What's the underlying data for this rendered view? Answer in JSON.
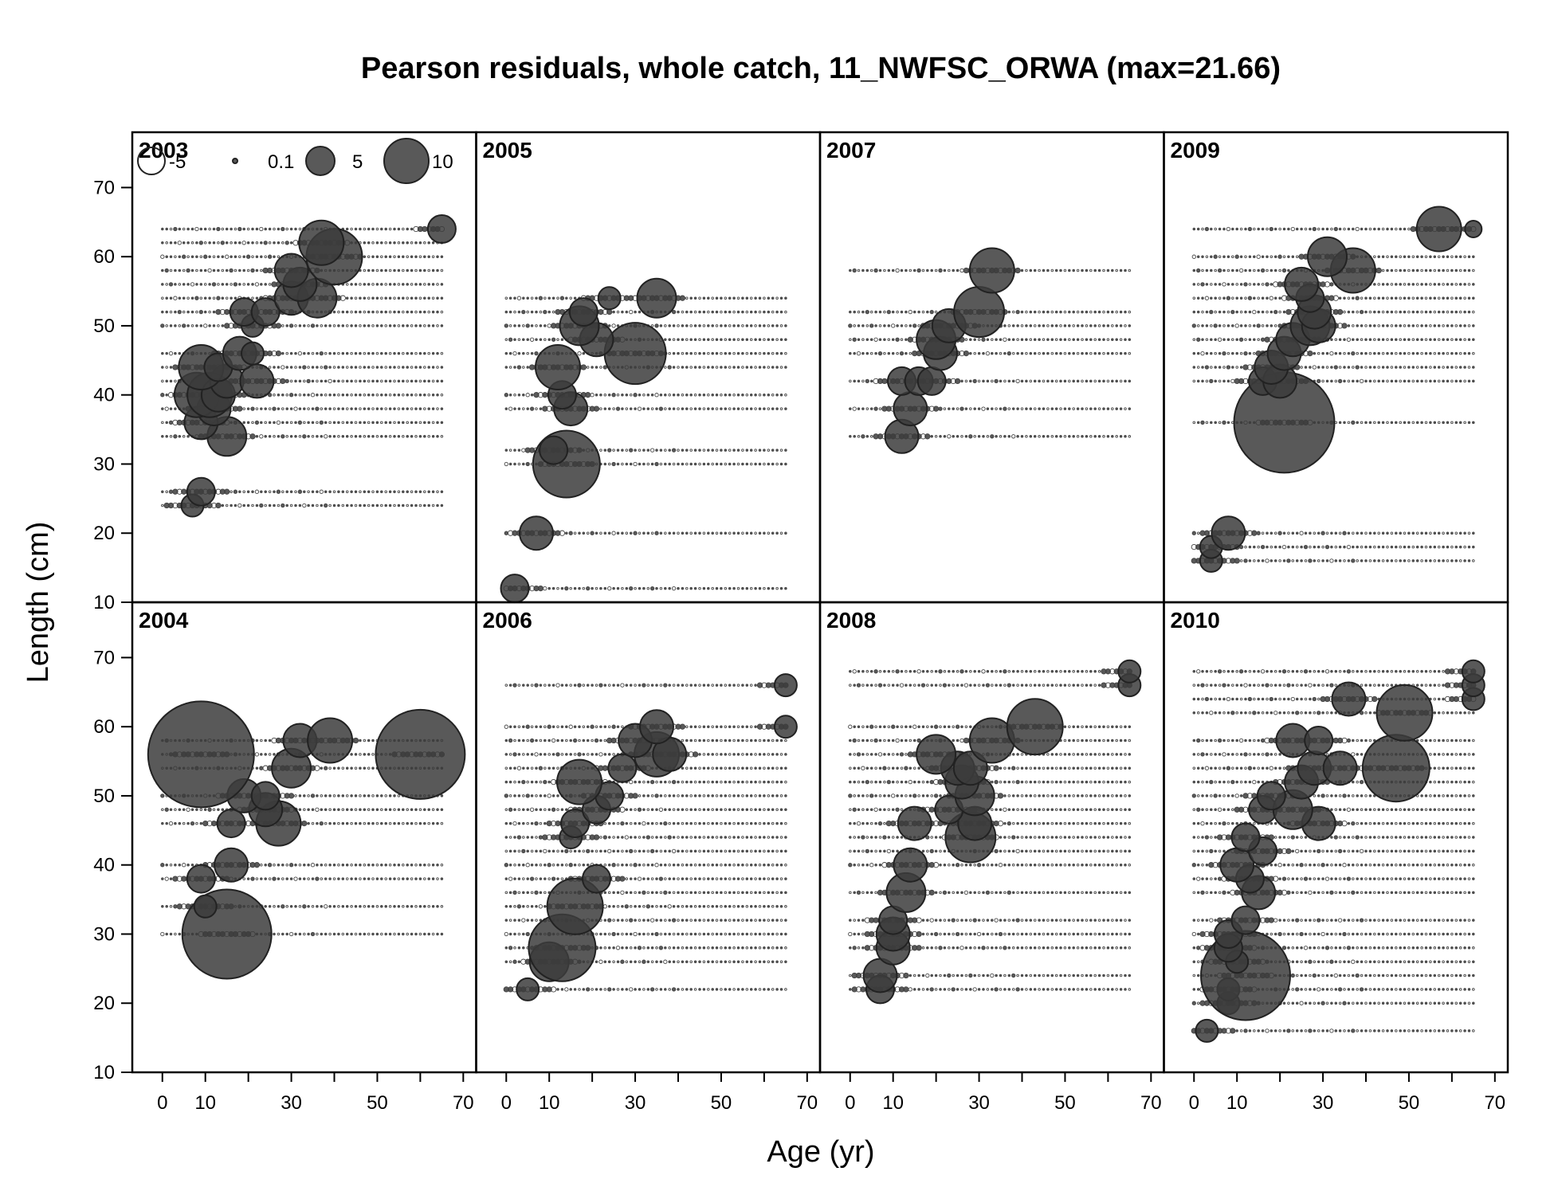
{
  "chart_data": {
    "type": "scatter",
    "title": "Pearson residuals, whole catch, 11_NWFSC_ORWA (max=21.66)",
    "xlabel": "Age (yr)",
    "ylabel": "Length (cm)",
    "xlim": [
      -7,
      73
    ],
    "ylim": [
      10,
      78
    ],
    "x_ticks": [
      0,
      10,
      30,
      50,
      70
    ],
    "x_ticks_minor": [
      0,
      10,
      20,
      30,
      40,
      50,
      60,
      70
    ],
    "y_ticks": [
      10,
      20,
      30,
      40,
      50,
      60,
      70
    ],
    "grid": false,
    "legend": {
      "placement": "top-left",
      "entries": [
        {
          "label": "-5",
          "value": -5,
          "filled": false
        },
        {
          "label": "0.1",
          "value": 0.1,
          "filled": true
        },
        {
          "label": "5",
          "value": 5,
          "filled": true
        },
        {
          "label": "10",
          "value": 10,
          "filled": true
        }
      ]
    },
    "colors": {
      "fill": "#3c3c3c",
      "stroke": "#222222",
      "open_stroke": "#444444"
    },
    "panels": [
      {
        "year": "2003",
        "lengths": [
          24,
          26,
          34,
          36,
          38,
          40,
          42,
          44,
          46,
          50,
          52,
          54,
          56,
          58,
          60,
          62,
          64
        ],
        "big": [
          [
            7,
            24,
            2
          ],
          [
            9,
            26,
            2.5
          ],
          [
            15,
            34,
            3.5
          ],
          [
            9,
            36,
            3
          ],
          [
            12,
            38,
            3
          ],
          [
            8,
            40,
            4
          ],
          [
            11,
            40,
            4
          ],
          [
            13,
            40,
            3
          ],
          [
            15,
            42,
            3
          ],
          [
            22,
            42,
            3
          ],
          [
            9,
            44,
            4
          ],
          [
            13,
            44,
            2.5
          ],
          [
            18,
            46,
            3
          ],
          [
            21,
            46,
            2
          ],
          [
            21,
            50,
            2
          ],
          [
            19,
            52,
            2.5
          ],
          [
            24,
            52,
            2.5
          ],
          [
            30,
            54,
            3
          ],
          [
            36,
            54,
            3.5
          ],
          [
            32,
            56,
            3
          ],
          [
            30,
            58,
            3
          ],
          [
            40,
            60,
            5
          ],
          [
            37,
            62,
            4
          ],
          [
            65,
            64,
            2.5
          ]
        ]
      },
      {
        "year": "2004",
        "lengths": [
          30,
          34,
          38,
          40,
          46,
          48,
          50,
          54,
          56,
          58
        ],
        "big": [
          [
            15,
            30,
            8
          ],
          [
            10,
            34,
            2
          ],
          [
            9,
            38,
            2.5
          ],
          [
            16,
            40,
            3
          ],
          [
            16,
            46,
            2.5
          ],
          [
            27,
            46,
            4
          ],
          [
            24,
            48,
            3
          ],
          [
            19,
            50,
            3
          ],
          [
            24,
            50,
            2.5
          ],
          [
            30,
            54,
            3.5
          ],
          [
            9,
            56,
            9.5
          ],
          [
            60,
            56,
            8
          ],
          [
            32,
            58,
            3
          ],
          [
            39,
            58,
            4
          ]
        ]
      },
      {
        "year": "2005",
        "lengths": [
          12,
          20,
          30,
          32,
          38,
          40,
          44,
          46,
          48,
          50,
          52,
          54
        ],
        "big": [
          [
            2,
            12,
            2.5
          ],
          [
            7,
            20,
            3
          ],
          [
            14,
            30,
            6
          ],
          [
            11,
            32,
            2.5
          ],
          [
            15,
            38,
            3
          ],
          [
            13,
            40,
            2.5
          ],
          [
            12,
            44,
            4
          ],
          [
            30,
            46,
            5.5
          ],
          [
            21,
            48,
            3
          ],
          [
            17,
            50,
            3.5
          ],
          [
            18,
            52,
            2.5
          ],
          [
            24,
            54,
            2
          ],
          [
            35,
            54,
            3.5
          ]
        ]
      },
      {
        "year": "2006",
        "lengths": [
          22,
          26,
          28,
          30,
          32,
          34,
          36,
          38,
          40,
          42,
          44,
          46,
          48,
          50,
          52,
          54,
          56,
          58,
          60,
          66
        ],
        "big": [
          [
            5,
            22,
            2
          ],
          [
            10,
            26,
            3.5
          ],
          [
            13,
            28,
            6
          ],
          [
            16,
            34,
            5
          ],
          [
            21,
            38,
            2.5
          ],
          [
            15,
            44,
            2
          ],
          [
            16,
            46,
            2.5
          ],
          [
            21,
            48,
            2.5
          ],
          [
            24,
            50,
            2.5
          ],
          [
            17,
            52,
            4
          ],
          [
            27,
            54,
            2.5
          ],
          [
            35,
            56,
            4
          ],
          [
            38,
            56,
            3
          ],
          [
            30,
            58,
            3
          ],
          [
            35,
            60,
            3
          ],
          [
            65,
            60,
            2
          ],
          [
            65,
            66,
            2
          ]
        ]
      },
      {
        "year": "2007",
        "lengths": [
          34,
          38,
          42,
          46,
          48,
          50,
          52,
          58
        ],
        "big": [
          [
            12,
            34,
            3
          ],
          [
            14,
            38,
            3
          ],
          [
            12,
            42,
            2.5
          ],
          [
            16,
            42,
            2.5
          ],
          [
            19,
            42,
            2.5
          ],
          [
            21,
            46,
            3
          ],
          [
            20,
            48,
            3.5
          ],
          [
            23,
            50,
            3
          ],
          [
            30,
            52,
            4.5
          ],
          [
            33,
            58,
            4
          ]
        ]
      },
      {
        "year": "2008",
        "lengths": [
          22,
          24,
          28,
          30,
          32,
          36,
          40,
          42,
          44,
          46,
          48,
          50,
          52,
          54,
          56,
          58,
          60,
          66,
          68
        ],
        "big": [
          [
            7,
            22,
            2.5
          ],
          [
            7,
            24,
            3
          ],
          [
            10,
            28,
            3
          ],
          [
            10,
            30,
            3
          ],
          [
            10,
            32,
            2.5
          ],
          [
            13,
            36,
            3.5
          ],
          [
            14,
            40,
            3
          ],
          [
            28,
            44,
            4.5
          ],
          [
            15,
            46,
            3
          ],
          [
            29,
            46,
            3
          ],
          [
            23,
            48,
            2.5
          ],
          [
            29,
            50,
            3.5
          ],
          [
            26,
            52,
            3
          ],
          [
            25,
            54,
            3
          ],
          [
            28,
            54,
            3
          ],
          [
            20,
            56,
            3.5
          ],
          [
            33,
            58,
            4
          ],
          [
            43,
            60,
            5
          ],
          [
            65,
            66,
            2
          ],
          [
            65,
            68,
            2
          ]
        ]
      },
      {
        "year": "2009",
        "lengths": [
          16,
          18,
          20,
          36,
          42,
          44,
          46,
          48,
          50,
          52,
          54,
          56,
          58,
          60,
          64
        ],
        "big": [
          [
            4,
            16,
            2
          ],
          [
            4,
            18,
            2
          ],
          [
            8,
            20,
            3
          ],
          [
            21,
            36,
            9
          ],
          [
            16,
            42,
            2.5
          ],
          [
            20,
            42,
            3
          ],
          [
            18,
            44,
            3
          ],
          [
            21,
            46,
            3
          ],
          [
            23,
            48,
            3
          ],
          [
            27,
            50,
            3.5
          ],
          [
            29,
            50,
            3
          ],
          [
            28,
            52,
            3
          ],
          [
            27,
            54,
            2.5
          ],
          [
            25,
            56,
            3
          ],
          [
            37,
            58,
            4
          ],
          [
            31,
            60,
            3.5
          ],
          [
            57,
            64,
            4
          ],
          [
            65,
            64,
            1.5
          ]
        ]
      },
      {
        "year": "2010",
        "lengths": [
          16,
          20,
          22,
          24,
          26,
          28,
          30,
          32,
          36,
          38,
          40,
          42,
          44,
          46,
          48,
          50,
          52,
          54,
          56,
          58,
          62,
          64,
          66,
          68
        ],
        "big": [
          [
            3,
            16,
            2
          ],
          [
            8,
            20,
            2
          ],
          [
            8,
            22,
            2
          ],
          [
            12,
            24,
            8
          ],
          [
            10,
            26,
            2
          ],
          [
            8,
            28,
            2.5
          ],
          [
            8,
            30,
            2.5
          ],
          [
            12,
            32,
            2.5
          ],
          [
            15,
            36,
            3
          ],
          [
            13,
            38,
            2.5
          ],
          [
            10,
            40,
            3
          ],
          [
            16,
            42,
            2.5
          ],
          [
            12,
            44,
            2.5
          ],
          [
            29,
            46,
            3
          ],
          [
            16,
            48,
            2.5
          ],
          [
            23,
            48,
            3.5
          ],
          [
            18,
            50,
            2.5
          ],
          [
            25,
            52,
            3
          ],
          [
            28,
            54,
            3
          ],
          [
            34,
            54,
            3
          ],
          [
            47,
            54,
            6
          ],
          [
            23,
            58,
            3
          ],
          [
            29,
            58,
            2.5
          ],
          [
            49,
            62,
            5
          ],
          [
            36,
            64,
            3
          ],
          [
            65,
            64,
            2
          ],
          [
            65,
            66,
            2
          ],
          [
            65,
            68,
            2
          ]
        ]
      }
    ]
  }
}
